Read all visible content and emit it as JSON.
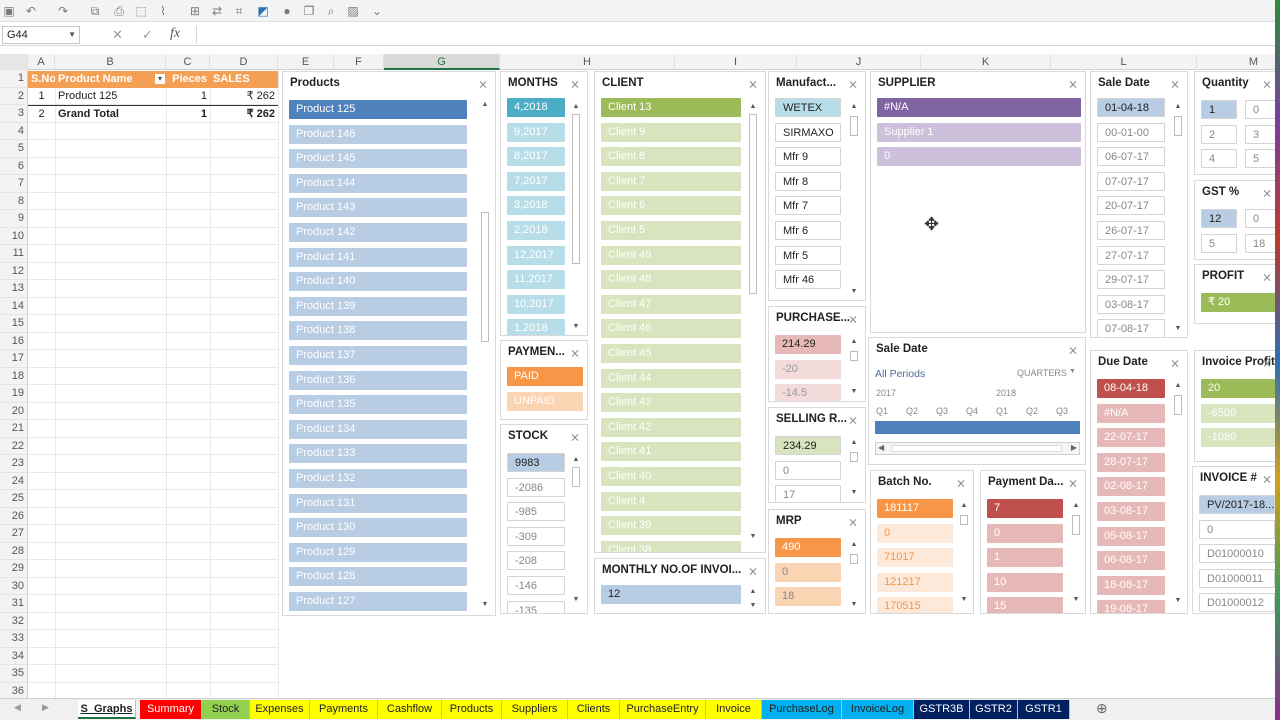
{
  "namebox": "G44",
  "columns": [
    "A",
    "B",
    "C",
    "D",
    "E",
    "F",
    "G",
    "H",
    "I",
    "J",
    "K",
    "L",
    "M"
  ],
  "rows": [
    "1",
    "2",
    "3",
    "4",
    "5",
    "6",
    "7",
    "8",
    "9",
    "10",
    "11",
    "12",
    "13",
    "14",
    "15",
    "16",
    "17",
    "18",
    "19",
    "20",
    "21",
    "22",
    "23",
    "24",
    "25",
    "26",
    "27",
    "28",
    "29",
    "30",
    "31",
    "32",
    "33",
    "34",
    "35",
    "36"
  ],
  "table": {
    "headers": {
      "sno": "S.No",
      "product": "Product Name",
      "pieces": "Pieces",
      "sales": "SALES"
    },
    "row": {
      "sno": "1",
      "product": "Product 125",
      "pieces": "1",
      "sales": "₹ 262"
    },
    "total": {
      "sno": "2",
      "label": "Grand Total",
      "pieces": "1",
      "sales": "₹ 262"
    }
  },
  "slicers": {
    "products": {
      "title": "Products",
      "items": [
        "Product 125",
        "Product 146",
        "Product 145",
        "Product 144",
        "Product 143",
        "Product 142",
        "Product 141",
        "Product 140",
        "Product 139",
        "Product 138",
        "Product 137",
        "Product 136",
        "Product 135",
        "Product 134",
        "Product 133",
        "Product 132",
        "Product 131",
        "Product 130",
        "Product 129",
        "Product 128",
        "Product 127"
      ]
    },
    "months": {
      "title": "MONTHS",
      "items": [
        "4,2018",
        "9,2017",
        "8,2017",
        "7,2017",
        "3,2018",
        "2,2018",
        "12,2017",
        "11,2017",
        "10,2017",
        "1,2018"
      ]
    },
    "payment": {
      "title": "PAYMEN...",
      "items": [
        "PAID",
        "UNPAID"
      ]
    },
    "stock": {
      "title": "STOCK",
      "items": [
        "9983",
        "-2086",
        "-985",
        "-309",
        "-208",
        "-146",
        "-135"
      ]
    },
    "client": {
      "title": "CLIENT",
      "items": [
        "Client 13",
        "Client 9",
        "Client 8",
        "Client 7",
        "Client 6",
        "Client 5",
        "Client 49",
        "Client 48",
        "Client 47",
        "Client 46",
        "Client 45",
        "Client 44",
        "Client 43",
        "Client 42",
        "Client 41",
        "Client 40",
        "Client 4",
        "Client 39",
        "Client 38"
      ]
    },
    "monthly": {
      "title": "MONTHLY NO.OF INVOI...",
      "items": [
        "12"
      ]
    },
    "manufact": {
      "title": "Manufact...",
      "items": [
        "WETEX",
        "SIRMAXO",
        "Mfr 9",
        "Mfr 8",
        "Mfr 7",
        "Mfr 6",
        "Mfr 5",
        "Mfr 46"
      ]
    },
    "purchase": {
      "title": "PURCHASE...",
      "items": [
        "214.29",
        "-20",
        "-14.5"
      ]
    },
    "selling": {
      "title": "SELLING R...",
      "items": [
        "234.29",
        "0",
        "17"
      ]
    },
    "mrp": {
      "title": "MRP",
      "items": [
        "490",
        "0",
        "18"
      ]
    },
    "supplier": {
      "title": "SUPPLIER",
      "items": [
        "#N/A",
        "Supplier 1",
        "0"
      ]
    },
    "saledate_tl": {
      "title": "Sale Date",
      "all_periods": "All Periods",
      "level": "QUARTERS",
      "year1": "2017",
      "year2": "2018",
      "quarters": [
        "Q1",
        "Q2",
        "Q3",
        "Q4",
        "Q1",
        "Q2",
        "Q3"
      ]
    },
    "batch": {
      "title": "Batch No.",
      "items": [
        "181117",
        "0",
        "71017",
        "121217",
        "170515"
      ]
    },
    "paymentdays": {
      "title": "Payment Da...",
      "items": [
        "7",
        "0",
        "1",
        "10",
        "15"
      ]
    },
    "saledate": {
      "title": "Sale Date",
      "items": [
        "01-04-18",
        "00-01-00",
        "06-07-17",
        "07-07-17",
        "20-07-17",
        "26-07-17",
        "27-07-17",
        "29-07-17",
        "03-08-17",
        "07-08-17"
      ]
    },
    "duedate": {
      "title": "Due Date",
      "items": [
        "08-04-18",
        "#N/A",
        "22-07-17",
        "28-07-17",
        "02-08-17",
        "03-08-17",
        "05-08-17",
        "06-08-17",
        "18-08-17",
        "19-08-17"
      ]
    },
    "quantity": {
      "title": "Quantity",
      "items": [
        "1",
        "0",
        "2",
        "3",
        "4",
        "5"
      ]
    },
    "gst": {
      "title": "GST %",
      "items": [
        "12",
        "0",
        "5",
        "18"
      ]
    },
    "profit": {
      "title": "PROFIT",
      "items": [
        "₹ 20"
      ]
    },
    "invprofit": {
      "title": "Invoice Profit",
      "items": [
        "20",
        "-6500",
        "-1080"
      ]
    },
    "invoice": {
      "title": "INVOICE #",
      "items": [
        "PV/2017-18...",
        "0",
        "D01000010",
        "D01000011",
        "D01000012"
      ]
    }
  },
  "tabs": [
    "S_Graphs",
    "Summary",
    "Stock",
    "Expenses",
    "Payments",
    "Cashflow",
    "Products",
    "Suppliers",
    "Clients",
    "PurchaseEntry",
    "Invoice",
    "PurchaseLog",
    "InvoiceLog",
    "GSTR3B",
    "GSTR2",
    "GSTR1"
  ],
  "colors": {
    "orange": "#f4a054",
    "blue": "#4f81bd",
    "green": "#9bbb59",
    "purple": "#8064a2",
    "red": "#c0504d",
    "teal": "#4bacc6"
  }
}
